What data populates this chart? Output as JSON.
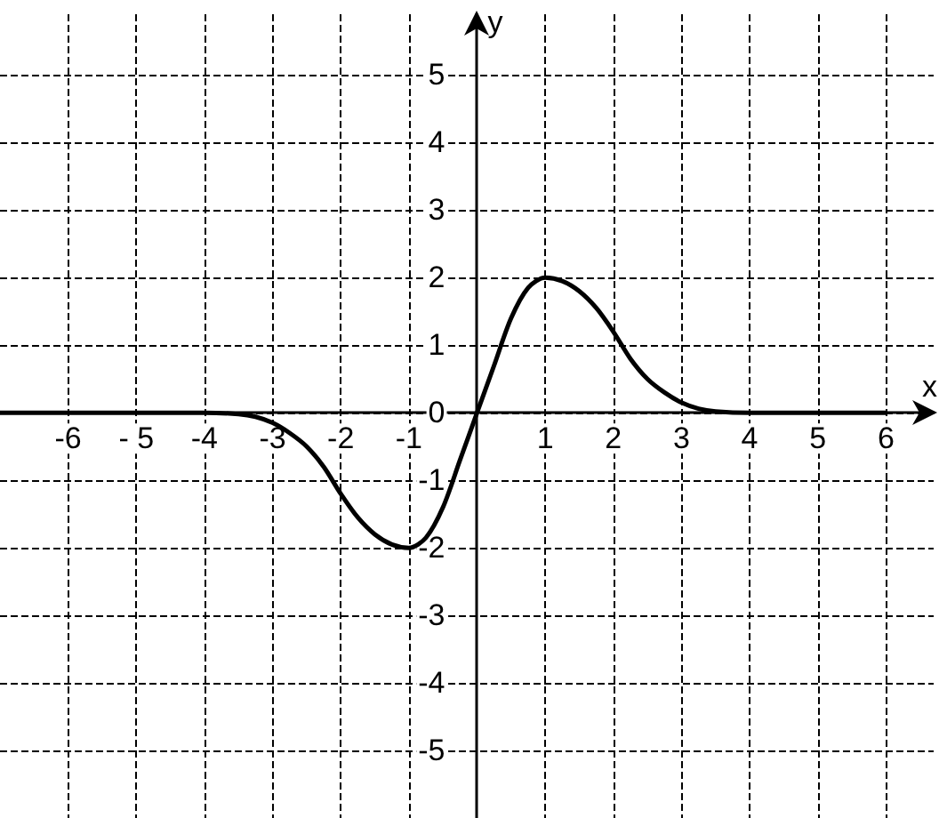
{
  "chart_data": {
    "type": "line",
    "xlabel": "x",
    "ylabel": "y",
    "x": [
      -7,
      -4,
      -3.5,
      -3.25,
      -3,
      -2.75,
      -2.5,
      -2.25,
      -2,
      -1.75,
      -1.5,
      -1.25,
      -1,
      -0.75,
      -0.5,
      -0.25,
      0,
      0.25,
      0.5,
      0.75,
      1,
      1.25,
      1.5,
      1.75,
      2,
      2.25,
      2.5,
      2.75,
      3,
      3.25,
      3.5,
      4,
      6
    ],
    "series": [
      {
        "color": "#000000",
        "values": [
          0,
          0,
          -0.02,
          -0.06,
          -0.15,
          -0.3,
          -0.5,
          -0.8,
          -1.2,
          -1.55,
          -1.8,
          -1.95,
          -2,
          -1.85,
          -1.4,
          -0.7,
          0,
          0.7,
          1.4,
          1.85,
          2,
          1.95,
          1.8,
          1.55,
          1.2,
          0.8,
          0.5,
          0.3,
          0.15,
          0.06,
          0.02,
          0,
          0
        ]
      }
    ],
    "xlim": [
      -7,
      6.7
    ],
    "ylim": [
      -6,
      5.9
    ],
    "xticks": [
      -6,
      {
        "value": -5,
        "label": "- 5"
      },
      -4,
      -3,
      -2,
      -1,
      1,
      2,
      3,
      4,
      5,
      6
    ],
    "yticks": [
      -5,
      -4,
      -3,
      -2,
      -1,
      0,
      1,
      2,
      3,
      4,
      5
    ],
    "grid": true,
    "marker": "none",
    "line_style": "solid"
  }
}
